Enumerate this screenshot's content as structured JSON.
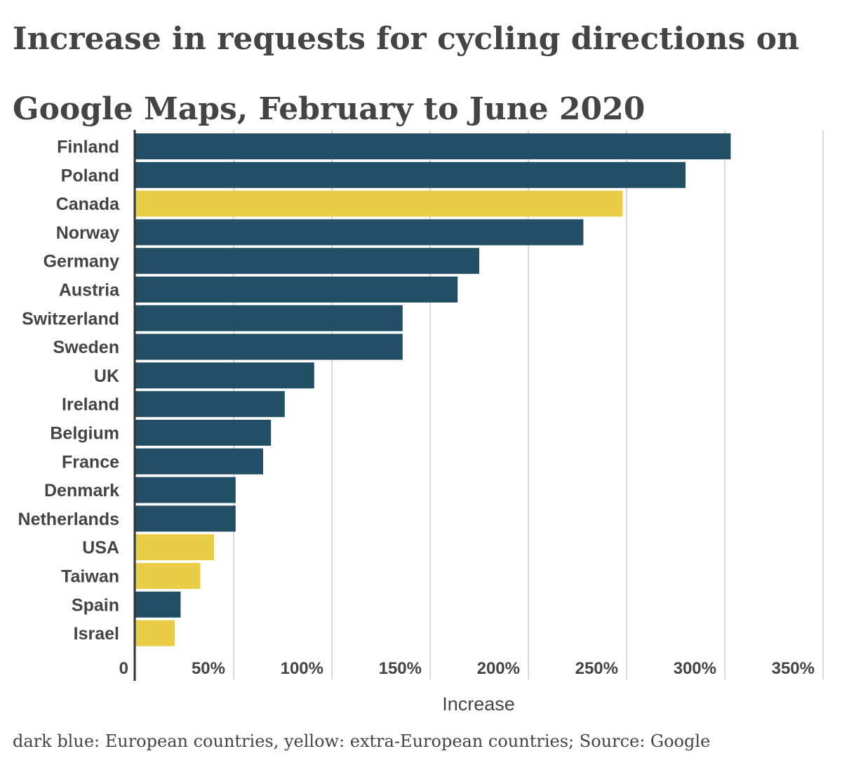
{
  "chart_data": {
    "type": "bar",
    "orientation": "horizontal",
    "title": "Increase in requests for cycling directions on Google Maps, February to June 2020",
    "xlabel": "Increase",
    "ylabel": "",
    "xlim": [
      0,
      350
    ],
    "grid": true,
    "tick_labels": [
      "0",
      "50%",
      "100%",
      "150%",
      "200%",
      "250%",
      "300%",
      "350%"
    ],
    "tick_values": [
      0,
      50,
      100,
      150,
      200,
      250,
      300,
      350
    ],
    "categories": [
      "Finland",
      "Poland",
      "Canada",
      "Norway",
      "Germany",
      "Austria",
      "Switzerland",
      "Sweden",
      "UK",
      "Ireland",
      "Belgium",
      "France",
      "Denmark",
      "Netherlands",
      "USA",
      "Taiwan",
      "Spain",
      "Israel"
    ],
    "values": [
      303,
      280,
      248,
      228,
      175,
      164,
      136,
      136,
      91,
      76,
      69,
      65,
      51,
      51,
      40,
      33,
      23,
      20
    ],
    "groups": [
      "European",
      "European",
      "extra-European",
      "European",
      "European",
      "European",
      "European",
      "European",
      "European",
      "European",
      "European",
      "European",
      "European",
      "European",
      "extra-European",
      "extra-European",
      "European",
      "extra-European"
    ],
    "colors": {
      "European": "#224e66",
      "extra-European": "#e9cd46"
    },
    "caption": "dark blue: European countries, yellow: extra-European countries; Source: Google"
  }
}
